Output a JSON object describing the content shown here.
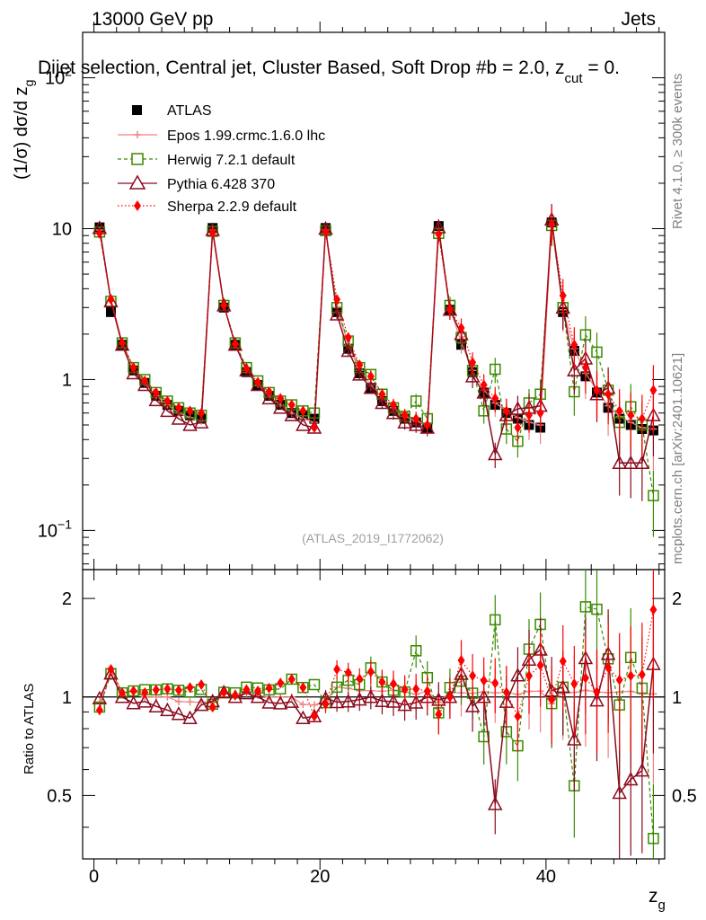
{
  "header": {
    "energy": "13000 GeV pp",
    "category": "Jets",
    "subtitle": "Dijet selection, Central jet, Cluster Based, Soft Drop #b = 2.0, z",
    "subtitle_sub": "cut",
    "subtitle_end": " = 0.",
    "side_label_right": "Rivet 4.1.0, ≥ 300k events",
    "side_label_bottom": "mcplots.cern.ch [arXiv:2401.10621]",
    "watermark": "(ATLAS_2019_I1772062)"
  },
  "colors": {
    "atlas": "#000000",
    "epos": "#f08080",
    "herwig": "#3a8a00",
    "pythia": "#8b0a1e",
    "sherpa": "#ff0000"
  },
  "chart_data": {
    "type": "scatter",
    "xlabel": "z",
    "xlabel_sub": "g",
    "ylabel_main": "(1/σ) dσ/d z",
    "ylabel_main_sub": "g",
    "ylabel_ratio": "Ratio to ATLAS",
    "x_ticks": [
      "0",
      "20",
      "40"
    ],
    "y_ticks_main": [
      {
        "base": "10",
        "exp": "2"
      },
      {
        "base": "10",
        "exp": ""
      },
      {
        "base": "1",
        "exp": ""
      },
      {
        "base": "10",
        "exp": "−1"
      }
    ],
    "y_ticks_ratio": [
      "0.5",
      "1",
      "2"
    ],
    "xlim": [
      -1,
      50.5
    ],
    "ylim_main": [
      0.055,
      200
    ],
    "ylim_ratio": [
      0.32,
      2.45
    ],
    "x": [
      0.5,
      1.5,
      2.5,
      3.5,
      4.5,
      5.5,
      6.5,
      7.5,
      8.5,
      9.5,
      10.5,
      11.5,
      12.5,
      13.5,
      14.5,
      15.5,
      16.5,
      17.5,
      18.5,
      19.5,
      20.5,
      21.5,
      22.5,
      23.5,
      24.5,
      25.5,
      26.5,
      27.5,
      28.5,
      29.5,
      30.5,
      31.5,
      32.5,
      33.5,
      34.5,
      35.5,
      36.5,
      37.5,
      38.5,
      39.5,
      40.5,
      41.5,
      42.5,
      43.5,
      44.5,
      45.5,
      46.5,
      47.5,
      48.5,
      49.5
    ],
    "atlas": [
      10.2,
      2.8,
      1.7,
      1.15,
      0.95,
      0.78,
      0.68,
      0.62,
      0.58,
      0.55,
      10.1,
      3.0,
      1.7,
      1.12,
      0.92,
      0.78,
      0.68,
      0.6,
      0.58,
      0.55,
      10.1,
      2.8,
      1.6,
      1.1,
      0.88,
      0.72,
      0.62,
      0.55,
      0.52,
      0.48,
      10.4,
      2.9,
      1.7,
      1.12,
      0.82,
      0.68,
      0.6,
      0.55,
      0.5,
      0.48,
      11.0,
      2.8,
      1.55,
      1.05,
      0.82,
      0.65,
      0.55,
      0.5,
      0.47,
      0.46
    ],
    "series": [
      {
        "name": "ATLAS",
        "key": "atlas",
        "marker": "square"
      },
      {
        "name": "Epos 1.99.crmc.1.6.0 lhc",
        "key": "epos",
        "marker": "cross",
        "values": [
          9.8,
          3.4,
          1.75,
          1.2,
          0.95,
          0.78,
          0.68,
          0.6,
          0.56,
          0.53,
          9.8,
          3.1,
          1.72,
          1.15,
          0.93,
          0.78,
          0.68,
          0.6,
          0.55,
          0.52,
          9.8,
          3.0,
          1.7,
          1.15,
          0.92,
          0.75,
          0.65,
          0.57,
          0.53,
          0.5,
          10.0,
          3.0,
          1.75,
          1.15,
          0.85,
          0.7,
          0.62,
          0.56,
          0.52,
          0.5,
          10.5,
          2.9,
          1.6,
          1.1,
          0.85,
          0.67,
          0.57,
          0.52,
          0.48,
          0.47
        ]
      },
      {
        "name": "Herwig 7.2.1 default",
        "key": "herwig",
        "marker": "open-square",
        "values": [
          9.5,
          3.3,
          1.75,
          1.2,
          1.0,
          0.82,
          0.72,
          0.65,
          0.6,
          0.58,
          9.6,
          3.1,
          1.75,
          1.2,
          0.98,
          0.82,
          0.72,
          0.68,
          0.62,
          0.6,
          9.7,
          3.0,
          1.8,
          1.2,
          1.08,
          0.8,
          0.65,
          0.57,
          0.72,
          0.55,
          9.3,
          3.1,
          1.9,
          1.15,
          0.62,
          1.17,
          0.47,
          0.39,
          0.7,
          0.8,
          10.5,
          3.0,
          0.83,
          1.98,
          1.52,
          0.85,
          0.52,
          0.66,
          0.5,
          0.17
        ]
      },
      {
        "name": "Pythia 6.428 370",
        "key": "pythia",
        "marker": "open-triangle",
        "values": [
          10.1,
          3.3,
          1.7,
          1.1,
          0.92,
          0.73,
          0.62,
          0.55,
          0.5,
          0.52,
          9.8,
          3.1,
          1.7,
          1.15,
          0.92,
          0.75,
          0.65,
          0.58,
          0.5,
          0.48,
          10.0,
          2.7,
          1.55,
          1.08,
          0.88,
          0.7,
          0.6,
          0.52,
          0.5,
          0.48,
          10.2,
          2.9,
          2.0,
          1.05,
          0.82,
          0.32,
          0.58,
          0.64,
          0.65,
          0.67,
          11.5,
          3.0,
          1.15,
          1.38,
          0.8,
          0.88,
          0.28,
          0.28,
          0.28,
          0.58
        ]
      },
      {
        "name": "Sherpa 2.2.9 default",
        "key": "sherpa",
        "marker": "diamond",
        "values": [
          9.3,
          3.4,
          1.75,
          1.2,
          0.98,
          0.82,
          0.72,
          0.65,
          0.62,
          0.6,
          9.4,
          3.1,
          1.72,
          1.18,
          0.96,
          0.83,
          0.75,
          0.68,
          0.62,
          0.48,
          9.6,
          3.4,
          1.9,
          1.25,
          1.05,
          0.8,
          0.68,
          0.58,
          0.55,
          0.5,
          9.2,
          2.9,
          2.2,
          1.3,
          0.92,
          0.75,
          0.62,
          0.48,
          0.58,
          0.6,
          10.8,
          3.6,
          1.7,
          1.2,
          0.85,
          0.8,
          0.62,
          0.58,
          0.55,
          0.85
        ]
      }
    ]
  }
}
